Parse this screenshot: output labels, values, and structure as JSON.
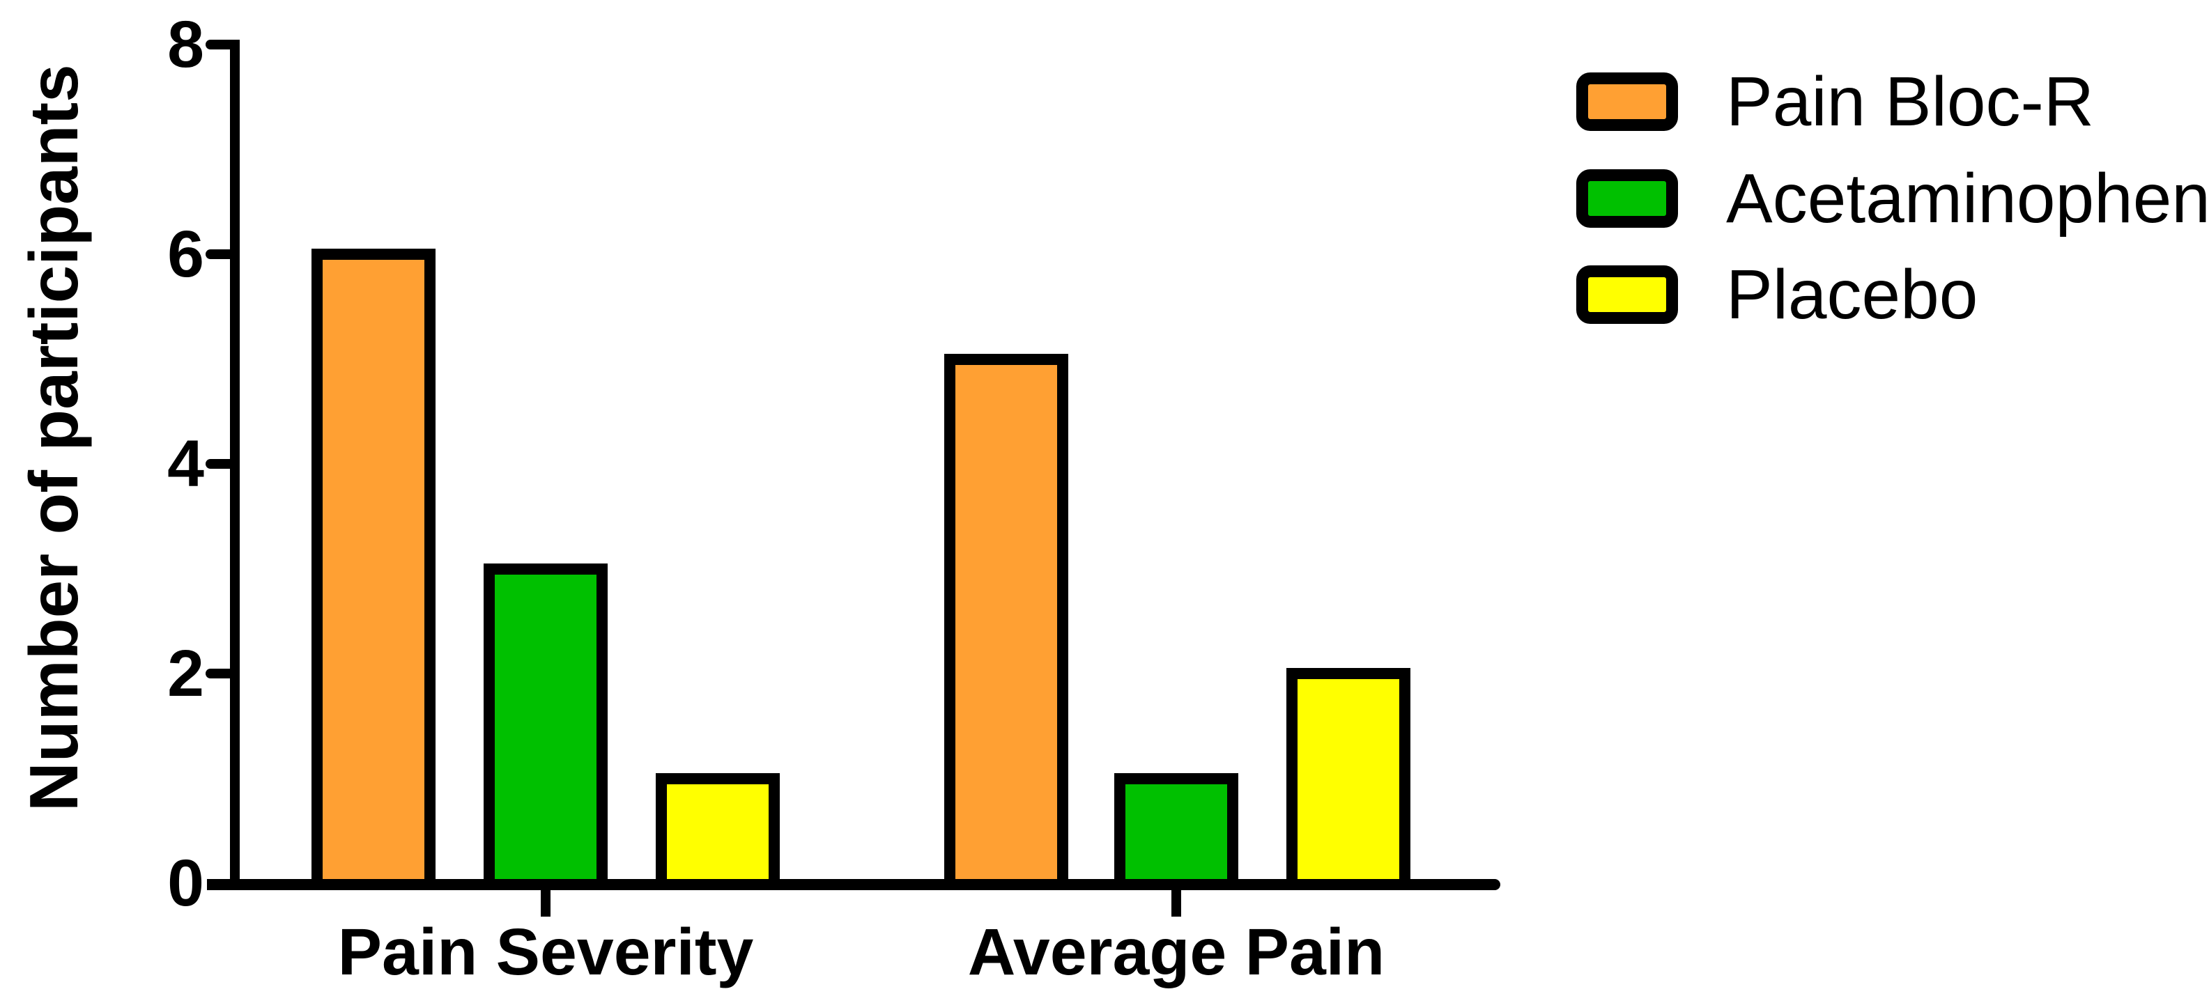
{
  "chart_data": {
    "type": "bar",
    "title": "",
    "xlabel": "",
    "ylabel": "Number of participants",
    "categories": [
      "Pain Severity",
      "Average Pain"
    ],
    "series": [
      {
        "name": "Pain Bloc-R",
        "color": "#FFA033",
        "values": [
          6,
          5
        ]
      },
      {
        "name": "Acetaminophen",
        "color": "#00C000",
        "values": [
          3,
          1
        ]
      },
      {
        "name": "Placebo",
        "color": "#FFFF00",
        "values": [
          1,
          2
        ]
      }
    ],
    "ylim": [
      0,
      8
    ],
    "yticks": [
      8,
      6,
      4,
      2,
      0
    ],
    "ytick_labels": [
      "8",
      "6",
      "4",
      "2",
      "0"
    ],
    "grid": false,
    "legend_position": "top-right",
    "axis_color": "#000000",
    "background_color": "#ffffff"
  }
}
